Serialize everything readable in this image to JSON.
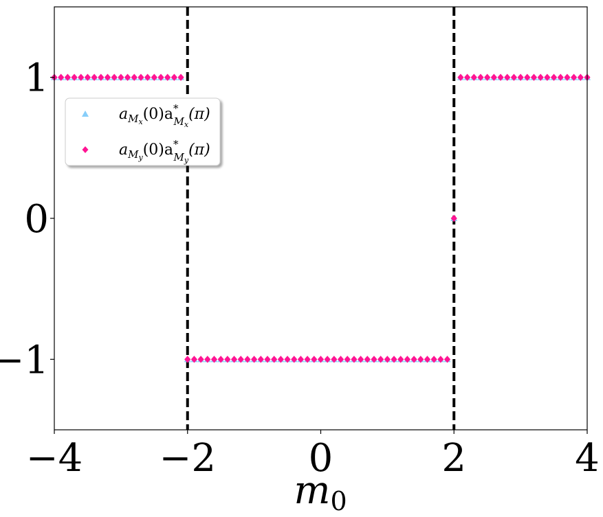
{
  "chart_data": {
    "type": "scatter",
    "xlabel": "m",
    "xlabel_sub": "0",
    "xlim": [
      -4,
      4
    ],
    "ylim": [
      -1.5,
      1.5
    ],
    "xticks": [
      -4,
      -2,
      0,
      2,
      4
    ],
    "yticks": [
      -1,
      0,
      1
    ],
    "xtick_labels": [
      "−4",
      "−2",
      "0",
      "2",
      "4"
    ],
    "ytick_labels": [
      "−1",
      "0",
      "1"
    ],
    "grid": false,
    "legend_position": "upper-left",
    "vlines": [
      -2,
      2
    ],
    "series": [
      {
        "name": "a_{M_x}(0)a^*_{M_x}(π)",
        "legend_label": {
          "base": "a",
          "sub1": "M",
          "sub2": "x",
          "mid": "(0)a",
          "sup": "*",
          "tail": "(π)"
        },
        "marker": "triangle",
        "color": "#87cefa",
        "x": [
          -4.0,
          -3.9,
          -3.8,
          -3.7,
          -3.6,
          -3.5,
          -3.4,
          -3.3,
          -3.2,
          -3.1,
          -3.0,
          -2.9,
          -2.8,
          -2.7,
          -2.6,
          -2.5,
          -2.4,
          -2.3,
          -2.2,
          -2.1,
          -2.0,
          -1.9,
          -1.8,
          -1.7,
          -1.6,
          -1.5,
          -1.4,
          -1.3,
          -1.2,
          -1.1,
          -1.0,
          -0.9,
          -0.8,
          -0.7,
          -0.6,
          -0.5,
          -0.4,
          -0.3,
          -0.2,
          -0.1,
          0.0,
          0.1,
          0.2,
          0.3,
          0.4,
          0.5,
          0.6,
          0.7,
          0.8,
          0.9,
          1.0,
          1.1,
          1.2,
          1.3,
          1.4,
          1.5,
          1.6,
          1.7,
          1.8,
          1.9,
          2.0,
          2.1,
          2.2,
          2.3,
          2.4,
          2.5,
          2.6,
          2.7,
          2.8,
          2.9,
          3.0,
          3.1,
          3.2,
          3.3,
          3.4,
          3.5,
          3.6,
          3.7,
          3.8,
          3.9,
          4.0
        ],
        "y": [
          1,
          1,
          1,
          1,
          1,
          1,
          1,
          1,
          1,
          1,
          1,
          1,
          1,
          1,
          1,
          1,
          1,
          1,
          1,
          1,
          -1,
          -1,
          -1,
          -1,
          -1,
          -1,
          -1,
          -1,
          -1,
          -1,
          -1,
          -1,
          -1,
          -1,
          -1,
          -1,
          -1,
          -1,
          -1,
          -1,
          -1,
          -1,
          -1,
          -1,
          -1,
          -1,
          -1,
          -1,
          -1,
          -1,
          -1,
          -1,
          -1,
          -1,
          -1,
          -1,
          -1,
          -1,
          -1,
          -1,
          0,
          1,
          1,
          1,
          1,
          1,
          1,
          1,
          1,
          1,
          1,
          1,
          1,
          1,
          1,
          1,
          1,
          1,
          1,
          1,
          1
        ]
      },
      {
        "name": "a_{M_y}(0)a^*_{M_y}(π)",
        "legend_label": {
          "base": "a",
          "sub1": "M",
          "sub2": "y",
          "mid": "(0)a",
          "sup": "*",
          "tail": "(π)"
        },
        "marker": "diamond",
        "color": "#ff1493",
        "x": [
          -4.0,
          -3.9,
          -3.8,
          -3.7,
          -3.6,
          -3.5,
          -3.4,
          -3.3,
          -3.2,
          -3.1,
          -3.0,
          -2.9,
          -2.8,
          -2.7,
          -2.6,
          -2.5,
          -2.4,
          -2.3,
          -2.2,
          -2.1,
          -2.0,
          -1.9,
          -1.8,
          -1.7,
          -1.6,
          -1.5,
          -1.4,
          -1.3,
          -1.2,
          -1.1,
          -1.0,
          -0.9,
          -0.8,
          -0.7,
          -0.6,
          -0.5,
          -0.4,
          -0.3,
          -0.2,
          -0.1,
          0.0,
          0.1,
          0.2,
          0.3,
          0.4,
          0.5,
          0.6,
          0.7,
          0.8,
          0.9,
          1.0,
          1.1,
          1.2,
          1.3,
          1.4,
          1.5,
          1.6,
          1.7,
          1.8,
          1.9,
          2.0,
          2.1,
          2.2,
          2.3,
          2.4,
          2.5,
          2.6,
          2.7,
          2.8,
          2.9,
          3.0,
          3.1,
          3.2,
          3.3,
          3.4,
          3.5,
          3.6,
          3.7,
          3.8,
          3.9,
          4.0
        ],
        "y": [
          1,
          1,
          1,
          1,
          1,
          1,
          1,
          1,
          1,
          1,
          1,
          1,
          1,
          1,
          1,
          1,
          1,
          1,
          1,
          1,
          -1,
          -1,
          -1,
          -1,
          -1,
          -1,
          -1,
          -1,
          -1,
          -1,
          -1,
          -1,
          -1,
          -1,
          -1,
          -1,
          -1,
          -1,
          -1,
          -1,
          -1,
          -1,
          -1,
          -1,
          -1,
          -1,
          -1,
          -1,
          -1,
          -1,
          -1,
          -1,
          -1,
          -1,
          -1,
          -1,
          -1,
          -1,
          -1,
          -1,
          0,
          1,
          1,
          1,
          1,
          1,
          1,
          1,
          1,
          1,
          1,
          1,
          1,
          1,
          1,
          1,
          1,
          1,
          1,
          1,
          1
        ]
      }
    ]
  }
}
